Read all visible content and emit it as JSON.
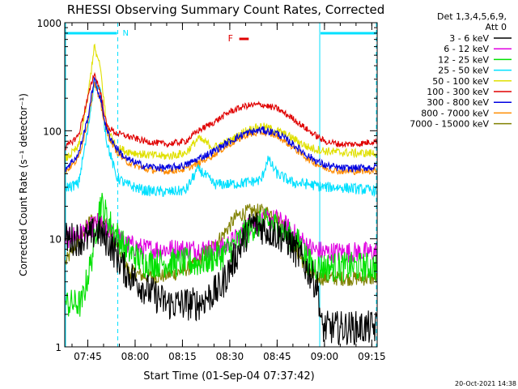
{
  "chart_data": {
    "type": "line",
    "title": "RHESSI Observing Summary Count Rates, Corrected",
    "xlabel": "Start Time (01-Sep-04 07:37:42)",
    "ylabel": "Corrected Count Rate (s⁻¹ detector⁻¹)",
    "y_scale": "log",
    "ylim": [
      1,
      1000
    ],
    "xlim_minutes_after_0700": [
      37.7,
      136.7
    ],
    "x_ticks": [
      {
        "label": "07:45",
        "t": 45
      },
      {
        "label": "08:00",
        "t": 60
      },
      {
        "label": "08:15",
        "t": 75
      },
      {
        "label": "08:30",
        "t": 90
      },
      {
        "label": "08:45",
        "t": 105
      },
      {
        "label": "09:00",
        "t": 120
      },
      {
        "label": "09:15",
        "t": 135
      }
    ],
    "y_ticks": [
      {
        "label": "1",
        "v": 1
      },
      {
        "label": "10",
        "v": 10
      },
      {
        "label": "100",
        "v": 100
      },
      {
        "label": "1000",
        "v": 1000
      }
    ],
    "legend_header": [
      "Det 1,3,4,5,6,9,",
      "Att 0"
    ],
    "legend_placement": "right",
    "bottom_stamp": "20-Oct-2021 14:38",
    "annotations": {
      "night_label": "N",
      "flare_label": "F",
      "flare_color": "#e00000",
      "night_color": "#00e0ff",
      "night_intervals": [
        [
          37.7,
          54.5
        ],
        [
          118.5,
          136.7
        ]
      ],
      "flare_interval": [
        93.0,
        96.0
      ]
    },
    "series": [
      {
        "name": "3 - 6 keV",
        "color": "#000000",
        "x": [
          38,
          45,
          48,
          52,
          57,
          63,
          70,
          80,
          87,
          92,
          97,
          102,
          105,
          108,
          112,
          116,
          118,
          119,
          125,
          130,
          136
        ],
        "y": [
          10,
          10,
          12,
          9,
          5,
          3.5,
          2.5,
          2.5,
          3.5,
          7,
          14,
          12,
          11,
          10,
          7,
          4.5,
          3.5,
          1.5,
          1.5,
          1.5,
          1.5
        ]
      },
      {
        "name": "6 - 12 keV",
        "color": "#e000e0",
        "x": [
          38,
          45,
          48,
          52,
          57,
          63,
          70,
          80,
          87,
          92,
          97,
          102,
          105,
          108,
          112,
          116,
          120,
          125,
          130,
          136
        ],
        "y": [
          10,
          12,
          14,
          12,
          9,
          8,
          8,
          8,
          8,
          10,
          14,
          15,
          15,
          13,
          10,
          8,
          7.5,
          7.5,
          7.5,
          7.5
        ]
      },
      {
        "name": "12 - 25 keV",
        "color": "#00e000",
        "x": [
          38,
          43,
          46,
          49,
          52,
          57,
          63,
          70,
          80,
          87,
          92,
          97,
          102,
          105,
          108,
          112,
          116,
          120,
          125,
          130,
          136
        ],
        "y": [
          2.5,
          2.5,
          6,
          22,
          14,
          8,
          6,
          6,
          6,
          7,
          9,
          13,
          14,
          13,
          11,
          9,
          5.5,
          5.5,
          5.5,
          5.5,
          5.5
        ]
      },
      {
        "name": "25 - 50 keV",
        "color": "#00e0ff",
        "x": [
          38,
          42,
          45,
          47,
          49,
          51,
          54,
          57,
          63,
          70,
          76,
          80,
          85,
          90,
          95,
          100,
          102,
          105,
          110,
          115,
          120,
          125,
          130,
          136
        ],
        "y": [
          30,
          32,
          100,
          280,
          230,
          80,
          38,
          32,
          28,
          27,
          28,
          45,
          32,
          32,
          33,
          35,
          55,
          40,
          33,
          32,
          30,
          30,
          29,
          28
        ]
      },
      {
        "name": "50 - 100 keV",
        "color": "#e0e000",
        "x": [
          38,
          42,
          45,
          47,
          49,
          51,
          54,
          57,
          63,
          70,
          76,
          80,
          85,
          90,
          95,
          100,
          105,
          110,
          115,
          120,
          125,
          130,
          136
        ],
        "y": [
          55,
          70,
          200,
          600,
          380,
          110,
          70,
          65,
          60,
          58,
          62,
          85,
          70,
          80,
          100,
          110,
          100,
          85,
          70,
          65,
          63,
          62,
          62
        ]
      },
      {
        "name": "100 - 300 keV",
        "color": "#e00000",
        "x": [
          38,
          42,
          45,
          47,
          49,
          51,
          54,
          57,
          63,
          70,
          76,
          80,
          85,
          90,
          95,
          100,
          105,
          110,
          115,
          120,
          125,
          130,
          136
        ],
        "y": [
          70,
          90,
          200,
          340,
          230,
          110,
          95,
          90,
          80,
          75,
          80,
          100,
          120,
          150,
          170,
          175,
          160,
          130,
          100,
          80,
          75,
          75,
          80
        ]
      },
      {
        "name": "300 - 800 keV",
        "color": "#0000e0",
        "x": [
          38,
          42,
          45,
          47,
          49,
          51,
          54,
          57,
          63,
          70,
          76,
          80,
          85,
          90,
          95,
          100,
          105,
          110,
          115,
          120,
          125,
          130,
          136
        ],
        "y": [
          45,
          60,
          130,
          300,
          200,
          100,
          70,
          55,
          47,
          45,
          48,
          55,
          65,
          80,
          95,
          102,
          95,
          75,
          58,
          48,
          45,
          45,
          46
        ]
      },
      {
        "name": "800 - 7000 keV",
        "color": "#ff8c00",
        "x": [
          38,
          42,
          45,
          47,
          49,
          51,
          54,
          57,
          63,
          70,
          76,
          80,
          85,
          90,
          95,
          100,
          105,
          110,
          115,
          120,
          125,
          130,
          136
        ],
        "y": [
          42,
          55,
          120,
          280,
          180,
          95,
          65,
          52,
          44,
          42,
          44,
          50,
          60,
          75,
          90,
          97,
          90,
          70,
          54,
          45,
          42,
          42,
          43
        ]
      },
      {
        "name": "7000 - 15000 keV",
        "color": "#808000",
        "x": [
          38,
          42,
          46,
          50,
          54,
          58,
          63,
          68,
          73,
          78,
          83,
          88,
          92,
          96,
          100,
          104,
          108,
          112,
          116,
          120,
          125,
          130,
          136
        ],
        "y": [
          6,
          10,
          15,
          15,
          9,
          5,
          4.5,
          4.5,
          4.8,
          5.5,
          7.5,
          11,
          16,
          18,
          18,
          17,
          12,
          7,
          4.5,
          4.3,
          4.3,
          4.3,
          4.3
        ]
      }
    ]
  }
}
